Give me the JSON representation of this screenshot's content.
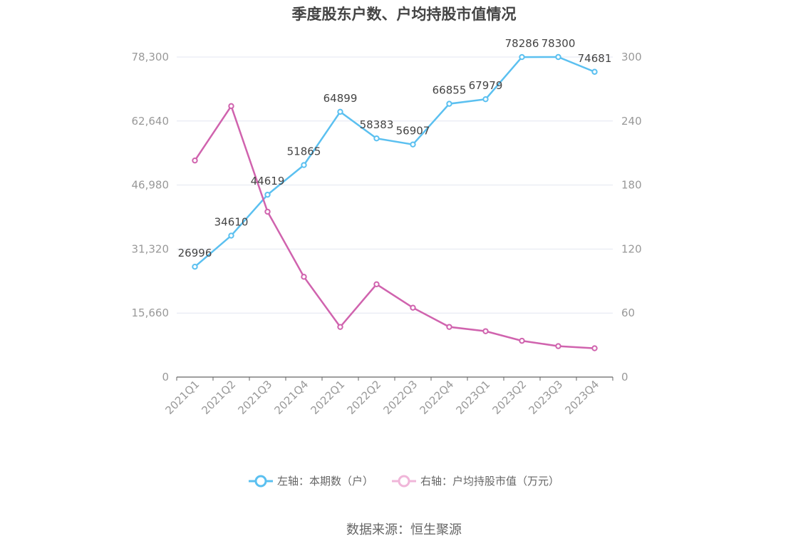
{
  "chart_data": {
    "type": "line",
    "title": "季度股东户数、户均持股市值情况",
    "categories": [
      "2021Q1",
      "2021Q2",
      "2021Q3",
      "2021Q4",
      "2022Q1",
      "2022Q2",
      "2022Q3",
      "2022Q4",
      "2023Q1",
      "2023Q2",
      "2023Q3",
      "2023Q4"
    ],
    "left_axis": {
      "ticks": [
        "0",
        "15,660",
        "31,320",
        "46,980",
        "62,640",
        "78,300"
      ],
      "ylim": [
        0,
        78300
      ]
    },
    "right_axis": {
      "ticks": [
        "0",
        "60",
        "120",
        "180",
        "240",
        "300"
      ],
      "ylim": [
        0,
        300
      ]
    },
    "series": [
      {
        "name": "左轴：本期数（户）",
        "axis": "left",
        "color": "#5bc0f0",
        "values": [
          26996,
          34610,
          44619,
          51865,
          64899,
          58383,
          56907,
          66855,
          67979,
          78286,
          78300,
          74681
        ],
        "labels": [
          "26996",
          "34610",
          "44619",
          "51865",
          "64899",
          "58383",
          "56907",
          "66855",
          "67979",
          "78286",
          "78300",
          "74681"
        ]
      },
      {
        "name": "右轴：户均持股市值（万元）",
        "axis": "right",
        "color": "#d063ae",
        "values": [
          203,
          254,
          155,
          94,
          47,
          87,
          65,
          47,
          43,
          34,
          29,
          27
        ]
      }
    ],
    "grid": true,
    "legend_position": "bottom"
  },
  "source": "数据来源：恒生聚源"
}
